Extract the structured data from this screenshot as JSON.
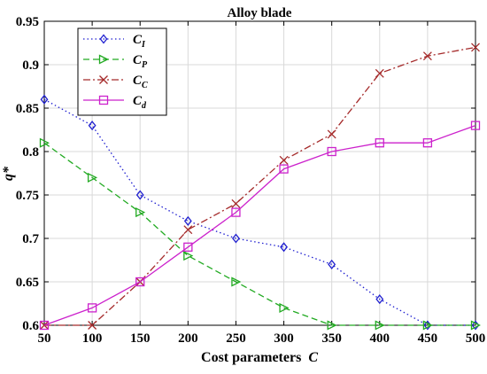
{
  "chart_data": {
    "type": "line",
    "title": "Alloy blade",
    "xlabel": "Cost parameters",
    "xlabel_var": "C",
    "ylabel": "q*",
    "xlim": [
      50,
      500
    ],
    "ylim": [
      0.6,
      0.95
    ],
    "x": [
      50,
      100,
      150,
      200,
      250,
      300,
      350,
      400,
      450,
      500
    ],
    "x_ticks": [
      "50",
      "100",
      "150",
      "200",
      "250",
      "300",
      "350",
      "400",
      "450",
      "500"
    ],
    "y_ticks": [
      "0.6",
      "0.65",
      "0.7",
      "0.75",
      "0.8",
      "0.85",
      "0.9",
      "0.95"
    ],
    "grid": true,
    "legend_position": "top-left",
    "series": [
      {
        "name": "C_I",
        "label_main": "C",
        "label_sub": "I",
        "color": "#1f1fd0",
        "dash": "dotted",
        "marker": "diamond",
        "values": [
          0.86,
          0.83,
          0.75,
          0.72,
          0.7,
          0.69,
          0.67,
          0.63,
          0.6,
          0.6
        ]
      },
      {
        "name": "C_P",
        "label_main": "C",
        "label_sub": "P",
        "color": "#22aa22",
        "dash": "dashed",
        "marker": "triangle-right",
        "values": [
          0.81,
          0.77,
          0.73,
          0.68,
          0.65,
          0.62,
          0.6,
          0.6,
          0.6,
          0.6
        ]
      },
      {
        "name": "C_C",
        "label_main": "C",
        "label_sub": "C",
        "color": "#a52a2a",
        "dash": "dashdot",
        "marker": "x",
        "values": [
          0.6,
          0.6,
          0.65,
          0.71,
          0.74,
          0.79,
          0.82,
          0.89,
          0.91,
          0.92
        ]
      },
      {
        "name": "C_d",
        "label_main": "C",
        "label_sub": "d",
        "color": "#cc22cc",
        "dash": "solid",
        "marker": "square",
        "values": [
          0.6,
          0.62,
          0.65,
          0.69,
          0.73,
          0.78,
          0.8,
          0.81,
          0.81,
          0.83
        ]
      }
    ]
  }
}
